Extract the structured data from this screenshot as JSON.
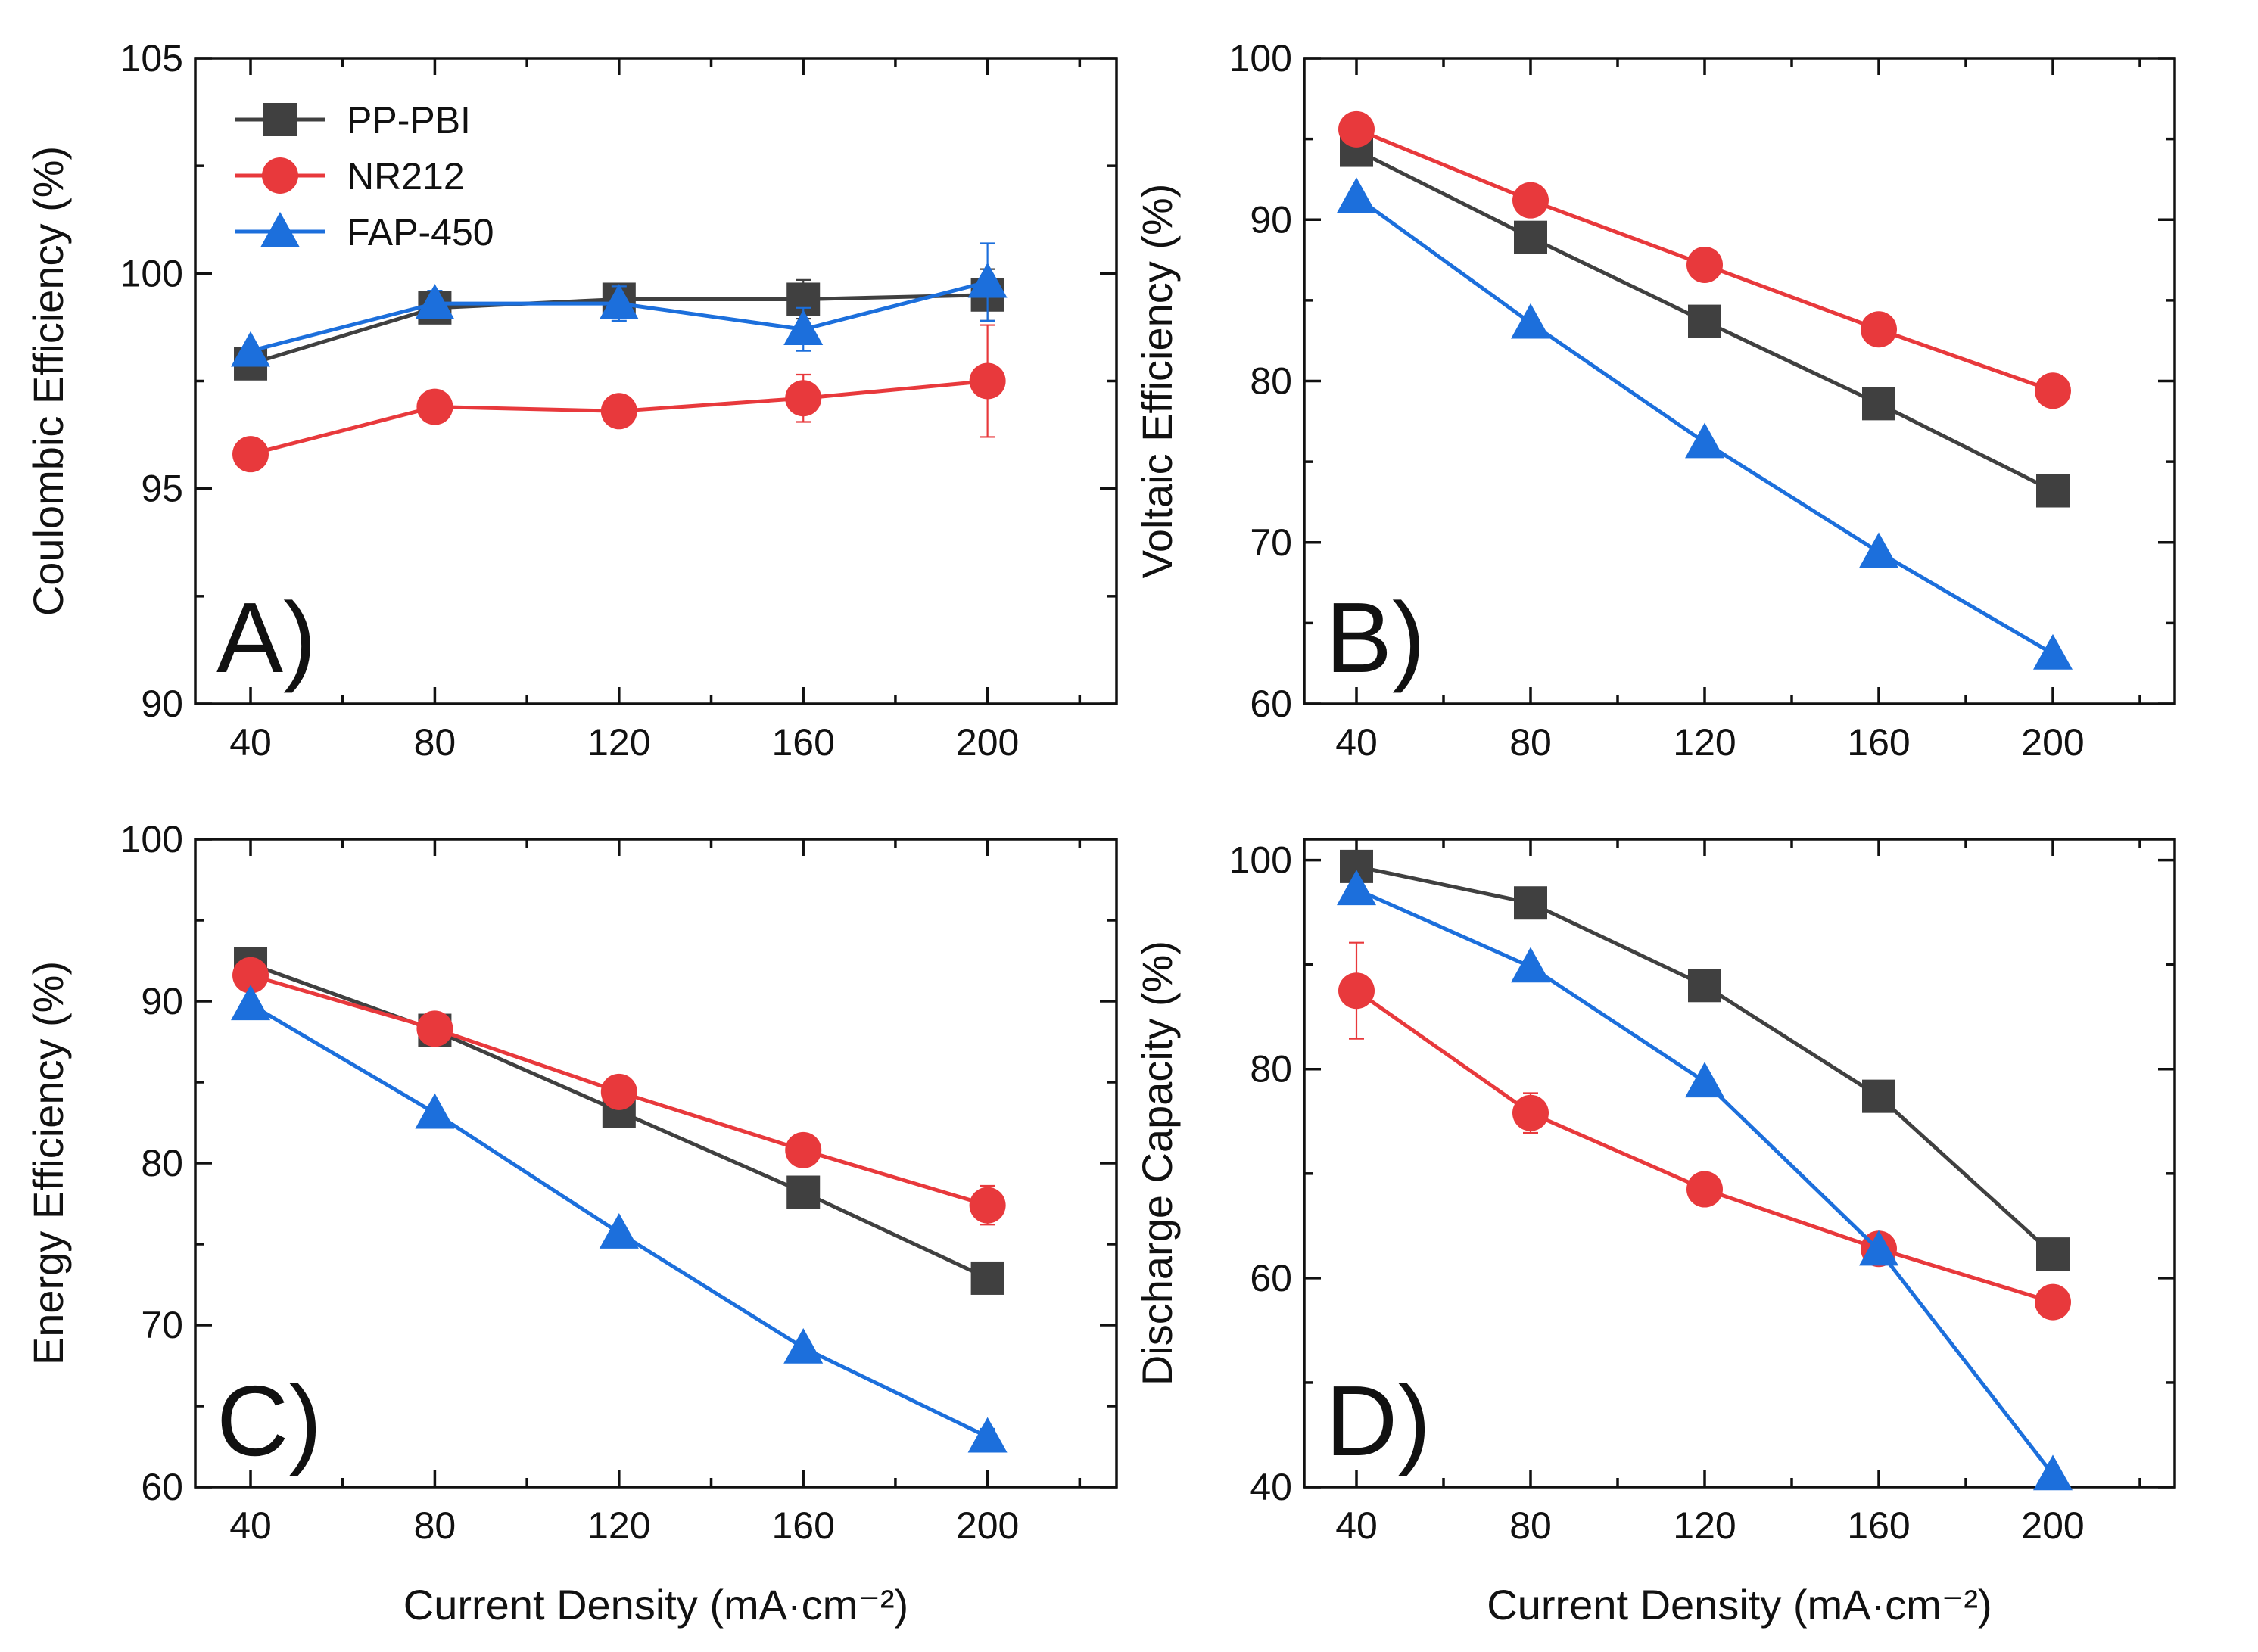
{
  "figure": {
    "xlabel": "Current Density (mA·cm⁻²)"
  },
  "legend": [
    {
      "name": "PP-PBI",
      "marker": "square",
      "color": "#404040"
    },
    {
      "name": "NR212",
      "marker": "circle",
      "color": "#e8393c"
    },
    {
      "name": "FAP-450",
      "marker": "triangle",
      "color": "#1c6fdc"
    }
  ],
  "chart_data": [
    {
      "panel": "A)",
      "type": "line",
      "ylabel": "Coulombic Efficiency (%)",
      "xlabel": "",
      "xlim": [
        28,
        228
      ],
      "ylim": [
        90,
        105
      ],
      "x": [
        40,
        80,
        120,
        160,
        200
      ],
      "xticks": [
        40,
        80,
        120,
        160,
        200
      ],
      "yticks": [
        90,
        95,
        100,
        105
      ],
      "series": [
        {
          "name": "PP-PBI",
          "values": [
            97.9,
            99.2,
            99.4,
            99.4,
            99.5
          ],
          "errors": [
            0.1,
            0.2,
            0.3,
            0.45,
            0.6
          ]
        },
        {
          "name": "NR212",
          "values": [
            95.8,
            96.9,
            96.8,
            97.1,
            97.5
          ],
          "errors": [
            0.1,
            0.2,
            0.2,
            0.55,
            1.3
          ]
        },
        {
          "name": "FAP-450",
          "values": [
            98.2,
            99.3,
            99.3,
            98.7,
            99.8
          ],
          "errors": [
            0.1,
            0.3,
            0.4,
            0.5,
            0.9
          ]
        }
      ]
    },
    {
      "panel": "B)",
      "type": "line",
      "ylabel": "Voltaic Efficiency (%)",
      "xlabel": "",
      "xlim": [
        28,
        228
      ],
      "ylim": [
        60,
        100
      ],
      "x": [
        40,
        80,
        120,
        160,
        200
      ],
      "xticks": [
        40,
        80,
        120,
        160,
        200
      ],
      "yticks": [
        60,
        70,
        80,
        90,
        100
      ],
      "series": [
        {
          "name": "PP-PBI",
          "values": [
            94.3,
            88.9,
            83.7,
            78.6,
            73.2
          ],
          "errors": [
            0,
            0,
            0,
            0,
            0
          ]
        },
        {
          "name": "NR212",
          "values": [
            95.6,
            91.2,
            87.2,
            83.2,
            79.4
          ],
          "errors": [
            0,
            0,
            0,
            0,
            0
          ]
        },
        {
          "name": "FAP-450",
          "values": [
            91.4,
            83.6,
            76.2,
            69.4,
            63.1
          ],
          "errors": [
            0,
            0,
            0,
            0,
            0
          ]
        }
      ]
    },
    {
      "panel": "C)",
      "type": "line",
      "ylabel": "Energy Efficiency (%)",
      "xlabel": "Current Density (mA·cm⁻²)",
      "xlim": [
        28,
        228
      ],
      "ylim": [
        60,
        100
      ],
      "x": [
        40,
        80,
        120,
        160,
        200
      ],
      "xticks": [
        40,
        80,
        120,
        160,
        200
      ],
      "yticks": [
        60,
        70,
        80,
        90,
        100
      ],
      "series": [
        {
          "name": "PP-PBI",
          "values": [
            92.3,
            88.2,
            83.2,
            78.2,
            72.9
          ],
          "errors": [
            0,
            0,
            0,
            0,
            0
          ]
        },
        {
          "name": "NR212",
          "values": [
            91.6,
            88.3,
            84.4,
            80.8,
            77.4
          ],
          "errors": [
            0,
            0,
            0,
            0.6,
            1.2
          ]
        },
        {
          "name": "FAP-450",
          "values": [
            89.8,
            83.1,
            75.7,
            68.6,
            63.1
          ],
          "errors": [
            0,
            0,
            0,
            0,
            0.5
          ]
        }
      ]
    },
    {
      "panel": "D)",
      "type": "line",
      "ylabel": "Discharge Capacity (%)",
      "xlabel": "Current Density (mA·cm⁻²)",
      "xlim": [
        28,
        228
      ],
      "ylim": [
        40,
        102
      ],
      "x": [
        40,
        80,
        120,
        160,
        200
      ],
      "xticks": [
        40,
        80,
        120,
        160,
        200
      ],
      "yticks": [
        40,
        60,
        80,
        100
      ],
      "series": [
        {
          "name": "PP-PBI",
          "values": [
            99.4,
            95.9,
            88.0,
            77.4,
            62.3
          ],
          "errors": [
            0,
            0,
            0,
            0,
            0
          ]
        },
        {
          "name": "NR212",
          "values": [
            87.5,
            75.8,
            68.5,
            62.8,
            57.7
          ],
          "errors": [
            4.6,
            1.9,
            0.8,
            0,
            0
          ]
        },
        {
          "name": "FAP-450",
          "values": [
            97.2,
            89.8,
            78.8,
            62.7,
            41.2
          ],
          "errors": [
            0,
            0,
            0,
            0,
            0
          ]
        }
      ]
    }
  ]
}
